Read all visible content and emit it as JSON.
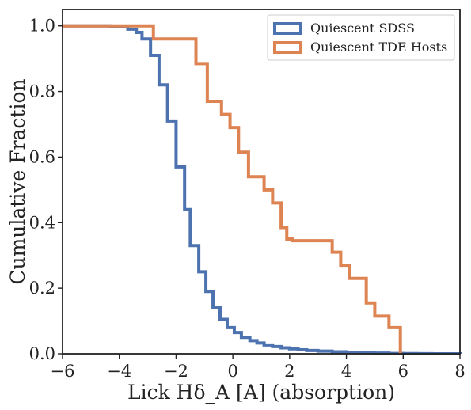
{
  "chart_data": {
    "type": "line",
    "style": "cumulative step histogram (descending)",
    "xlabel": "Lick Hδ_A [A] (absorption)",
    "ylabel": "Cumulative Fraction",
    "xlim": [
      -6,
      8
    ],
    "ylim": [
      0,
      1.05
    ],
    "x_ticks": [
      -6,
      -4,
      -2,
      0,
      2,
      4,
      6,
      8
    ],
    "x_tick_labels": [
      "−6",
      "−4",
      "−2",
      "0",
      "2",
      "4",
      "6",
      "8"
    ],
    "y_ticks": [
      0,
      0.2,
      0.4,
      0.6,
      0.8,
      1.0
    ],
    "y_tick_labels": [
      "0.0",
      "0.2",
      "0.4",
      "0.6",
      "0.8",
      "1.0"
    ],
    "grid": false,
    "legend_position": "top-right",
    "series": [
      {
        "name": "Quiescent SDSS",
        "color": "#4c72b0",
        "x": [
          -6.0,
          -4.3,
          -3.7,
          -3.4,
          -3.2,
          -2.9,
          -2.6,
          -2.3,
          -2.0,
          -1.7,
          -1.5,
          -1.2,
          -0.95,
          -0.7,
          -0.45,
          -0.2,
          0.05,
          0.3,
          0.6,
          0.85,
          1.1,
          1.4,
          1.7,
          2.0,
          2.3,
          2.6,
          3.0,
          3.5,
          4.0,
          4.5,
          5.0,
          5.5,
          6.0,
          6.5,
          7.0,
          8.0
        ],
        "y": [
          1.0,
          0.997,
          0.99,
          0.98,
          0.96,
          0.91,
          0.82,
          0.71,
          0.57,
          0.44,
          0.33,
          0.25,
          0.19,
          0.14,
          0.105,
          0.08,
          0.065,
          0.05,
          0.04,
          0.033,
          0.027,
          0.022,
          0.018,
          0.015,
          0.012,
          0.01,
          0.008,
          0.006,
          0.004,
          0.003,
          0.002,
          0.001,
          0.0005,
          0.0002,
          0.0001,
          0.0
        ]
      },
      {
        "name": "Quiescent TDE Hosts",
        "color": "#dd8452",
        "x": [
          -6.0,
          -2.8,
          -1.3,
          -0.9,
          -0.4,
          -0.1,
          0.2,
          0.55,
          1.1,
          1.4,
          1.7,
          1.9,
          2.1,
          3.5,
          3.8,
          4.1,
          4.7,
          5.0,
          5.5,
          5.9
        ],
        "y": [
          1.0,
          0.96,
          0.885,
          0.77,
          0.73,
          0.69,
          0.615,
          0.54,
          0.5,
          0.46,
          0.385,
          0.35,
          0.345,
          0.31,
          0.27,
          0.23,
          0.155,
          0.115,
          0.08,
          0.0
        ]
      }
    ]
  }
}
